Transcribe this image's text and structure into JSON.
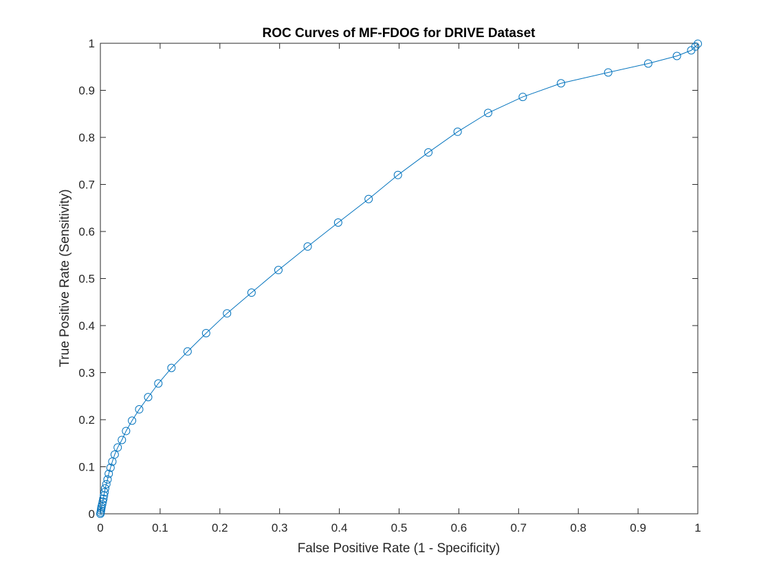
{
  "chart_data": {
    "type": "line",
    "title": "ROC Curves of MF-FDOG for DRIVE Dataset",
    "xlabel": "False Positive Rate (1 - Specificity)",
    "ylabel": "True Positive Rate (Sensitivity)",
    "xlim": [
      0,
      1
    ],
    "ylim": [
      0,
      1
    ],
    "xticks": [
      "0",
      "0.1",
      "0.2",
      "0.3",
      "0.4",
      "0.5",
      "0.6",
      "0.7",
      "0.8",
      "0.9",
      "1"
    ],
    "yticks": [
      "0",
      "0.1",
      "0.2",
      "0.3",
      "0.4",
      "0.5",
      "0.6",
      "0.7",
      "0.8",
      "0.9",
      "1"
    ],
    "grid": false,
    "legend": "none",
    "line_color": "#0072BD",
    "marker": "circle",
    "series": [
      {
        "x": [
          0.0,
          0.0005,
          0.001,
          0.0015,
          0.002,
          0.003,
          0.004,
          0.005,
          0.006,
          0.007,
          0.008,
          0.01,
          0.012,
          0.014,
          0.017,
          0.02,
          0.024,
          0.029,
          0.036,
          0.043,
          0.053,
          0.065,
          0.08,
          0.097,
          0.119,
          0.146,
          0.177,
          0.212,
          0.253,
          0.298,
          0.347,
          0.398,
          0.449,
          0.498,
          0.549,
          0.598,
          0.649,
          0.707,
          0.771,
          0.85,
          0.917,
          0.965,
          0.989,
          0.996,
          1.0
        ],
        "y": [
          0.0,
          0.003,
          0.007,
          0.011,
          0.015,
          0.02,
          0.026,
          0.032,
          0.039,
          0.046,
          0.054,
          0.063,
          0.073,
          0.085,
          0.098,
          0.111,
          0.126,
          0.141,
          0.157,
          0.176,
          0.198,
          0.222,
          0.248,
          0.277,
          0.31,
          0.345,
          0.384,
          0.426,
          0.47,
          0.518,
          0.568,
          0.619,
          0.669,
          0.72,
          0.768,
          0.812,
          0.852,
          0.886,
          0.915,
          0.938,
          0.957,
          0.973,
          0.985,
          0.993,
          0.999
        ]
      }
    ]
  }
}
